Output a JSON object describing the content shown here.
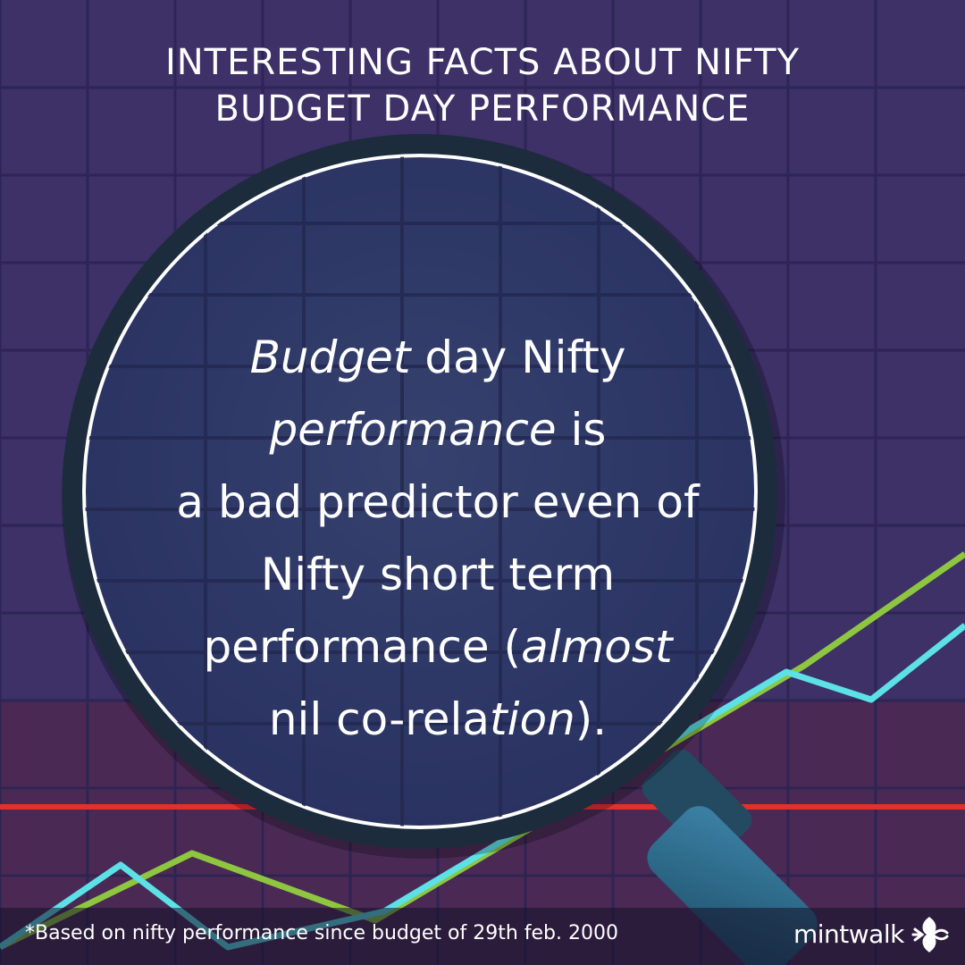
{
  "title": {
    "line1": "INTERESTING FACTS ABOUT NIFTY",
    "line2": "BUDGET DAY PERFORMANCE"
  },
  "fact": {
    "l1_italic": "Budget",
    "l1_rest": " day Nifty",
    "l2_italic": "performance",
    "l2_rest": " is",
    "l3": "a bad predictor even of",
    "l4": "Nifty short term",
    "l5_start": "performance (",
    "l5_italic": "almost",
    "l6_start": "nil co-rela",
    "l6_italic": "tion",
    "l6_end": ")."
  },
  "footnote": "*Based on nifty performance since budget of 29th feb. 2000",
  "brand": {
    "name": "mintwalk",
    "logo_icon": "mintwalk-logo-icon"
  },
  "colors": {
    "background": "#3d3168",
    "lower_band": "#4a2a55",
    "grid": "#2a2352",
    "lens_fill": "#2f3563",
    "lens_rim": "#1a2a3a",
    "red_line": "#e1312e",
    "green_line": "#8ec63f",
    "cyan_line": "#5ce1e6",
    "handle": "#2d6a8a"
  }
}
